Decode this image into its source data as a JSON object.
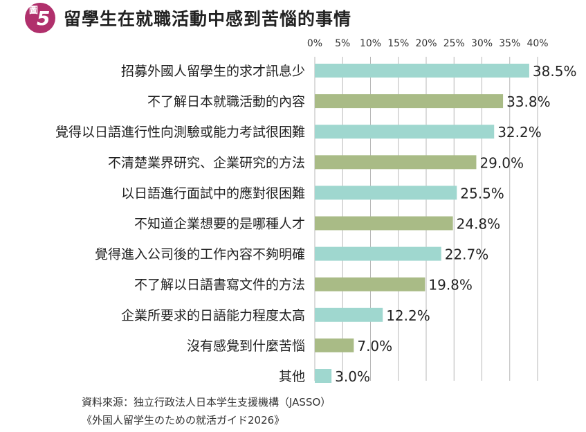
{
  "header": {
    "badge_kanji": "圖",
    "badge_number": "5",
    "title": "留學生在就職活動中感到苦惱的事情"
  },
  "chart_data": {
    "type": "bar",
    "orientation": "horizontal",
    "categories": [
      "招募外國人留學生的求才訊息少",
      "不了解日本就職活動的內容",
      "覺得以日語進行性向測驗或能力考試很困難",
      "不清楚業界研究、企業研究的方法",
      "以日語進行面試中的應對很困難",
      "不知道企業想要的是哪種人才",
      "覺得進入公司後的工作內容不夠明確",
      "不了解以日語書寫文件的方法",
      "企業所要求的日語能力程度太高",
      "沒有感覺到什麼苦惱",
      "其他"
    ],
    "values": [
      38.5,
      33.8,
      32.2,
      29.0,
      25.5,
      24.8,
      22.7,
      19.8,
      12.2,
      7.0,
      3.0
    ],
    "value_labels": [
      "38.5%",
      "33.8%",
      "32.2%",
      "29.0%",
      "25.5%",
      "24.8%",
      "22.7%",
      "19.8%",
      "12.2%",
      "7.0%",
      "3.0%"
    ],
    "x_ticks": [
      "0%",
      "5%",
      "10%",
      "15%",
      "20%",
      "25%",
      "30%",
      "35%",
      "40%"
    ],
    "xlim": [
      0,
      40
    ],
    "grid": true,
    "bar_colors": [
      "#9fd7cf",
      "#a9bb86"
    ],
    "grid_color": "#b7b7b7"
  },
  "source": {
    "line1": "資料來源：独立行政法人日本学生支援機構（JASSO）",
    "line2": "《外国人留学生のための就活ガイド2026》"
  }
}
